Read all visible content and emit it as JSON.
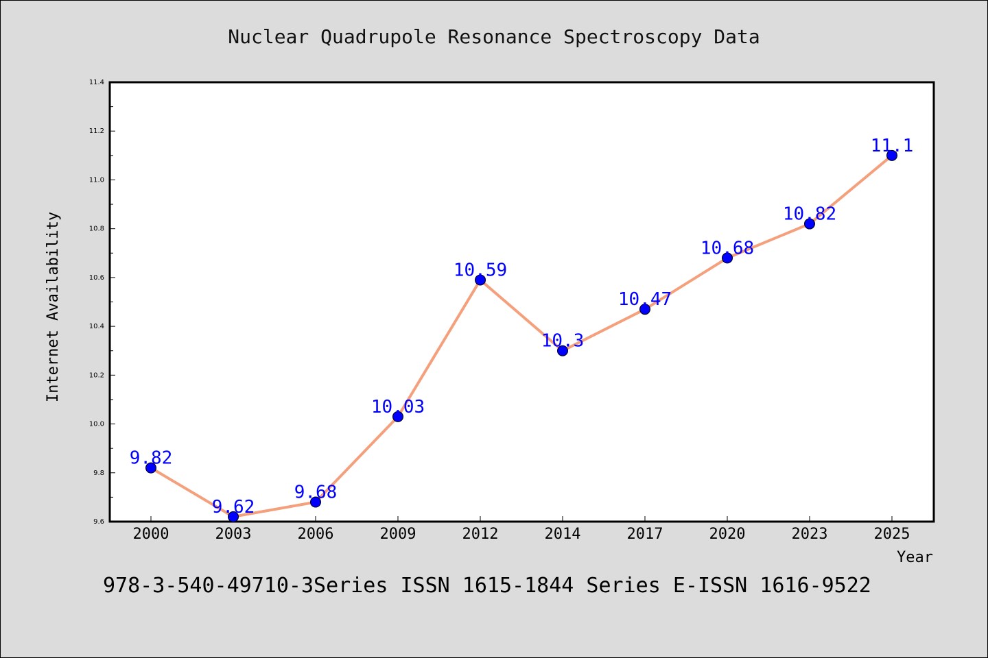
{
  "chart_data": {
    "type": "line",
    "title": "Nuclear Quadrupole Resonance Spectroscopy Data",
    "xlabel": "Year",
    "ylabel": "Internet Availability",
    "categories": [
      "2000",
      "2003",
      "2006",
      "2009",
      "2012",
      "2014",
      "2017",
      "2020",
      "2023",
      "2025"
    ],
    "series": [
      {
        "values": [
          9.82,
          9.62,
          9.68,
          10.03,
          10.59,
          10.3,
          10.47,
          10.68,
          10.82,
          11.1
        ],
        "labels": [
          "9.82",
          "9.62",
          "9.68",
          "10.03",
          "10.59",
          "10.3",
          "10.47",
          "10.68",
          "10.82",
          "11.1"
        ]
      }
    ],
    "ylim": [
      9.6,
      11.4
    ],
    "yticks": [
      "9.6",
      "9.8",
      "10.0",
      "10.2",
      "10.4",
      "10.6",
      "10.8",
      "11.0",
      "11.2",
      "11.4"
    ],
    "grid": false,
    "line_color": "#f4a07c",
    "marker_color": "#0000ff",
    "label_color": "#0000ff",
    "background_color": "#dcdcdc",
    "plot_background_color": "#ffffff"
  },
  "footer_text": "978-3-540-49710-3Series ISSN 1615-1844 Series E-ISSN 1616-9522"
}
